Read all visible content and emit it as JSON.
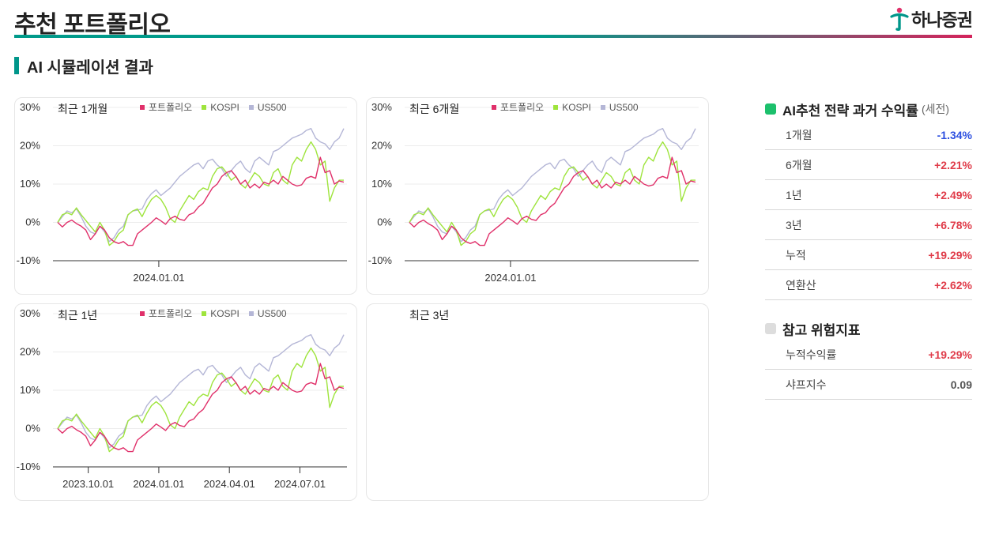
{
  "header": {
    "title": "추천 포트폴리오",
    "brand": "하나증권"
  },
  "section": {
    "title": "AI 시뮬레이션 결과"
  },
  "colors": {
    "portfolio": "#e0306a",
    "kospi": "#9ee43c",
    "us500": "#b4b6d6",
    "positive": "#e03c4a",
    "negative": "#2c4fe0",
    "neutral": "#555555",
    "accent_green": "#1cc06c",
    "accent_gray": "#dddddd"
  },
  "chart_data": [
    {
      "type": "line",
      "title": "최근 1개월",
      "legend": [
        "포트폴리오",
        "KOSPI",
        "US500"
      ],
      "yticks": [
        "30%",
        "20%",
        "10%",
        "0%",
        "-10%"
      ],
      "ylim": [
        -10,
        30
      ],
      "xticks": [
        "2024.01.01"
      ],
      "xtick_positions": [
        0.36
      ],
      "series": [
        {
          "name": "포트폴리오",
          "values": [
            0,
            -1.2,
            0,
            0.6,
            -0.3,
            -1,
            -2,
            -4.5,
            -3,
            -1,
            -2,
            -4,
            -5,
            -5.5,
            -5,
            -6,
            -6,
            -3,
            -2,
            -1,
            0,
            1.2,
            0.4,
            -0.5,
            1,
            1.6,
            0.8,
            0.5,
            2,
            2.5,
            4,
            5,
            7,
            9,
            10,
            12,
            13,
            13.5,
            12,
            10,
            11,
            9,
            10,
            9,
            10.5,
            10,
            11,
            10,
            12,
            11,
            10,
            9.5,
            9.8,
            11.5,
            12,
            11.5,
            17,
            13,
            13.5,
            10,
            10.8,
            10.5
          ]
        },
        {
          "name": "KOSPI",
          "values": [
            0,
            2,
            2.5,
            2,
            3.8,
            2,
            0.5,
            -1,
            -2.5,
            0,
            -2,
            -6,
            -5,
            -3,
            -2,
            2,
            3,
            3.5,
            1.5,
            4,
            6,
            7,
            6,
            4,
            1,
            0,
            3,
            5,
            7,
            6,
            8,
            9,
            8.5,
            12,
            14,
            14.5,
            13,
            11,
            12,
            10,
            9,
            11,
            13,
            12,
            10,
            9.5,
            13,
            14,
            11,
            10,
            15,
            17,
            16,
            19,
            21,
            19,
            15,
            16,
            5.5,
            9,
            11,
            11
          ]
        },
        {
          "name": "US500",
          "values": [
            0,
            1.5,
            3,
            2.5,
            3.5,
            1.5,
            -1,
            -2.5,
            -3,
            -1,
            -2.5,
            -5,
            -4,
            -2,
            -1,
            2,
            3,
            3.2,
            3.5,
            6,
            7.5,
            8.5,
            7,
            8,
            9,
            10.5,
            12,
            13,
            14,
            15,
            15.5,
            14,
            16,
            16.5,
            15,
            14,
            12,
            13.5,
            15,
            16,
            14,
            13,
            16,
            17,
            16,
            15,
            18.5,
            19,
            20,
            21,
            22,
            22.5,
            23,
            24,
            24.5,
            22,
            21,
            20.5,
            19,
            21,
            22,
            24.5
          ]
        }
      ]
    },
    {
      "type": "line",
      "title": "최근 6개월",
      "legend": [
        "포트폴리오",
        "KOSPI",
        "US500"
      ],
      "yticks": [
        "30%",
        "20%",
        "10%",
        "0%",
        "-10%"
      ],
      "ylim": [
        -10,
        30
      ],
      "xticks": [
        "2024.01.01"
      ],
      "xtick_positions": [
        0.36
      ],
      "series": [
        {
          "name": "포트폴리오",
          "values": [
            0,
            -1.2,
            0,
            0.6,
            -0.3,
            -1,
            -2,
            -4.5,
            -3,
            -1,
            -2,
            -4,
            -5,
            -5.5,
            -5,
            -6,
            -6,
            -3,
            -2,
            -1,
            0,
            1.2,
            0.4,
            -0.5,
            1,
            1.6,
            0.8,
            0.5,
            2,
            2.5,
            4,
            5,
            7,
            9,
            10,
            12,
            13,
            13.5,
            12,
            10,
            11,
            9,
            10,
            9,
            10.5,
            10,
            11,
            10,
            12,
            11,
            10,
            9.5,
            9.8,
            11.5,
            12,
            11.5,
            17,
            13,
            13.5,
            10,
            10.8,
            10.5
          ]
        },
        {
          "name": "KOSPI",
          "values": [
            0,
            2,
            2.5,
            2,
            3.8,
            2,
            0.5,
            -1,
            -2.5,
            0,
            -2,
            -6,
            -5,
            -3,
            -2,
            2,
            3,
            3.5,
            1.5,
            4,
            6,
            7,
            6,
            4,
            1,
            0,
            3,
            5,
            7,
            6,
            8,
            9,
            8.5,
            12,
            14,
            14.5,
            13,
            11,
            12,
            10,
            9,
            11,
            13,
            12,
            10,
            9.5,
            13,
            14,
            11,
            10,
            15,
            17,
            16,
            19,
            21,
            19,
            15,
            16,
            5.5,
            9,
            11,
            11
          ]
        },
        {
          "name": "US500",
          "values": [
            0,
            1.5,
            3,
            2.5,
            3.5,
            1.5,
            -1,
            -2.5,
            -3,
            -1,
            -2.5,
            -5,
            -4,
            -2,
            -1,
            2,
            3,
            3.2,
            3.5,
            6,
            7.5,
            8.5,
            7,
            8,
            9,
            10.5,
            12,
            13,
            14,
            15,
            15.5,
            14,
            16,
            16.5,
            15,
            14,
            12,
            13.5,
            15,
            16,
            14,
            13,
            16,
            17,
            16,
            15,
            18.5,
            19,
            20,
            21,
            22,
            22.5,
            23,
            24,
            24.5,
            22,
            21,
            20.5,
            19,
            21,
            22,
            24.5
          ]
        }
      ]
    },
    {
      "type": "line",
      "title": "최근 1년",
      "legend": [
        "포트폴리오",
        "KOSPI",
        "US500"
      ],
      "yticks": [
        "30%",
        "20%",
        "10%",
        "0%",
        "-10%"
      ],
      "ylim": [
        -10,
        30
      ],
      "xticks": [
        "2023.10.01",
        "2024.01.01",
        "2024.04.01",
        "2024.07.01"
      ],
      "xtick_positions": [
        0.12,
        0.36,
        0.6,
        0.84
      ],
      "series": [
        {
          "name": "포트폴리오",
          "values": [
            0,
            -1.2,
            0,
            0.6,
            -0.3,
            -1,
            -2,
            -4.5,
            -3,
            -1,
            -2,
            -4,
            -5,
            -5.5,
            -5,
            -6,
            -6,
            -3,
            -2,
            -1,
            0,
            1.2,
            0.4,
            -0.5,
            1,
            1.6,
            0.8,
            0.5,
            2,
            2.5,
            4,
            5,
            7,
            9,
            10,
            12,
            13,
            13.5,
            12,
            10,
            11,
            9,
            10,
            9,
            10.5,
            10,
            11,
            10,
            12,
            11,
            10,
            9.5,
            9.8,
            11.5,
            12,
            11.5,
            17,
            13,
            13.5,
            10,
            10.8,
            10.5
          ]
        },
        {
          "name": "KOSPI",
          "values": [
            0,
            2,
            2.5,
            2,
            3.8,
            2,
            0.5,
            -1,
            -2.5,
            0,
            -2,
            -6,
            -5,
            -3,
            -2,
            2,
            3,
            3.5,
            1.5,
            4,
            6,
            7,
            6,
            4,
            1,
            0,
            3,
            5,
            7,
            6,
            8,
            9,
            8.5,
            12,
            14,
            14.5,
            13,
            11,
            12,
            10,
            9,
            11,
            13,
            12,
            10,
            9.5,
            13,
            14,
            11,
            10,
            15,
            17,
            16,
            19,
            21,
            19,
            15,
            16,
            5.5,
            9,
            11,
            11
          ]
        },
        {
          "name": "US500",
          "values": [
            0,
            1.5,
            3,
            2.5,
            3.5,
            1.5,
            -1,
            -2.5,
            -3,
            -1,
            -2.5,
            -5,
            -4,
            -2,
            -1,
            2,
            3,
            3.2,
            3.5,
            6,
            7.5,
            8.5,
            7,
            8,
            9,
            10.5,
            12,
            13,
            14,
            15,
            15.5,
            14,
            16,
            16.5,
            15,
            14,
            12,
            13.5,
            15,
            16,
            14,
            13,
            16,
            17,
            16,
            15,
            18.5,
            19,
            20,
            21,
            22,
            22.5,
            23,
            24,
            24.5,
            22,
            21,
            20.5,
            19,
            21,
            22,
            24.5
          ]
        }
      ]
    },
    {
      "type": "line",
      "title": "최근 3년",
      "series": []
    }
  ],
  "returns": {
    "title": "AI추천 전략 과거 수익률",
    "subtitle": "(세전)",
    "rows": [
      {
        "label": "1개월",
        "value": "-1.34%",
        "sign": "negative"
      },
      {
        "label": "6개월",
        "value": "+2.21%",
        "sign": "positive"
      },
      {
        "label": "1년",
        "value": "+2.49%",
        "sign": "positive"
      },
      {
        "label": "3년",
        "value": "+6.78%",
        "sign": "positive"
      },
      {
        "label": "누적",
        "value": "+19.29%",
        "sign": "positive"
      },
      {
        "label": "연환산",
        "value": "+2.62%",
        "sign": "positive"
      }
    ]
  },
  "risk": {
    "title": "참고 위험지표",
    "rows": [
      {
        "label": "누적수익률",
        "value": "+19.29%",
        "sign": "positive"
      },
      {
        "label": "샤프지수",
        "value": "0.09",
        "sign": "neutral"
      }
    ]
  }
}
